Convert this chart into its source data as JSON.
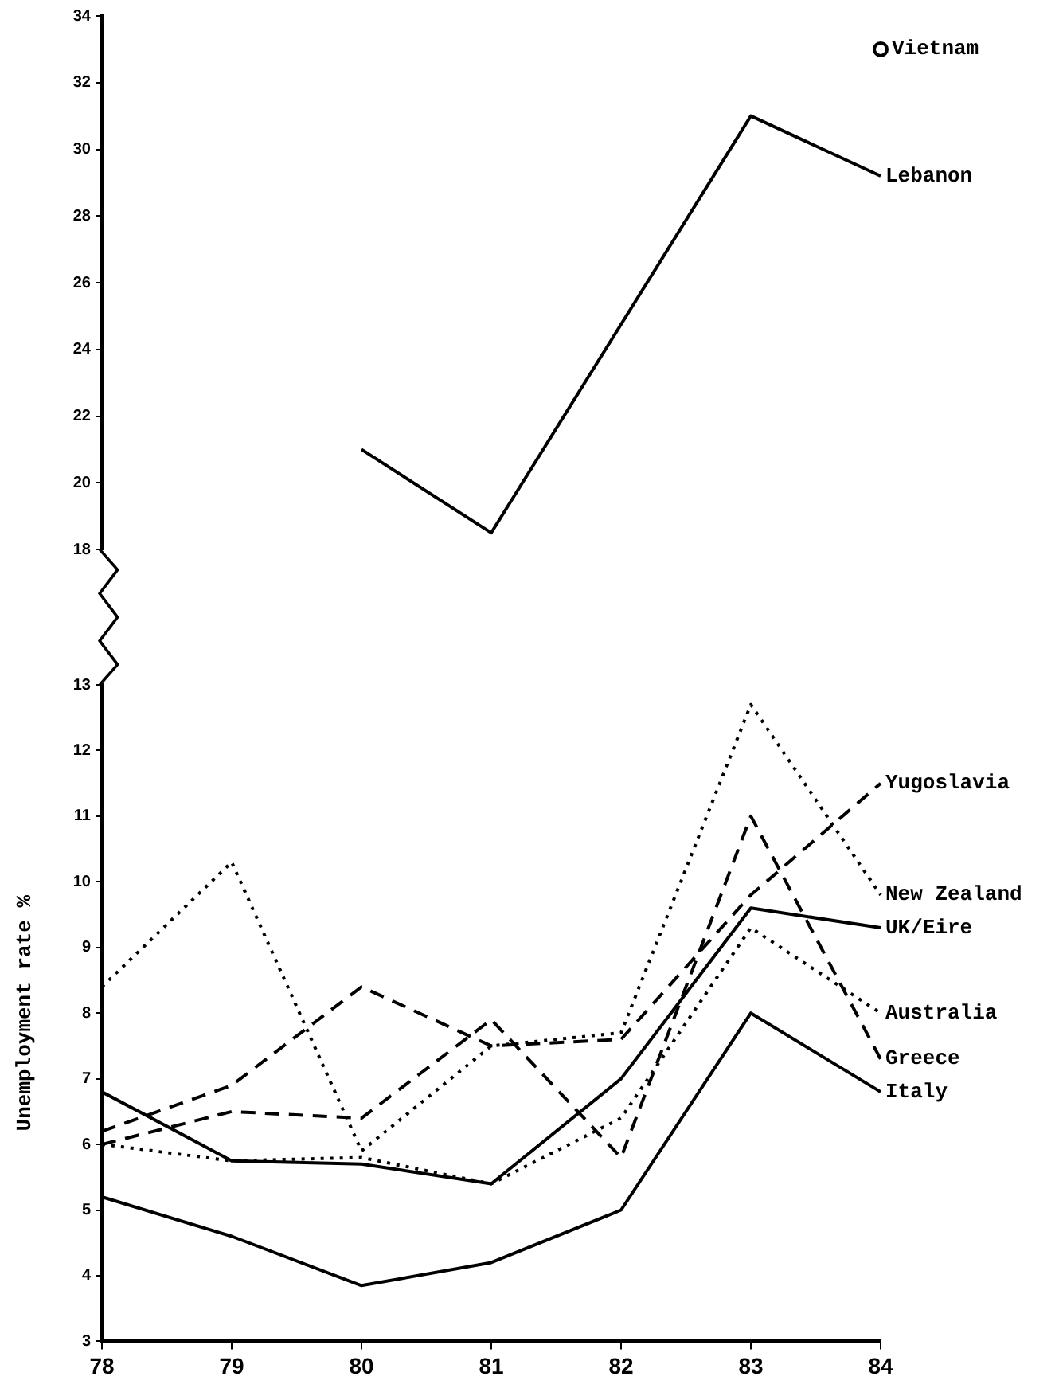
{
  "chart_data": [
    {
      "type": "line",
      "categories": [
        "78",
        "79",
        "80",
        "81",
        "82",
        "83",
        "84"
      ],
      "ylim": [
        18,
        34
      ],
      "yticks": [
        18,
        20,
        22,
        24,
        26,
        28,
        30,
        32,
        34
      ],
      "tick_labels": "y",
      "grid": false,
      "legend": false,
      "series": [
        {
          "name": "Vietnam",
          "type": "scatter",
          "marker": "circle",
          "color": "#000000",
          "values": [
            null,
            null,
            null,
            null,
            null,
            null,
            33
          ]
        },
        {
          "name": "Lebanon",
          "line_style": "solid",
          "color": "#000000",
          "values": [
            null,
            null,
            21,
            18.5,
            null,
            31,
            29.2
          ]
        }
      ]
    },
    {
      "type": "line",
      "ylabel": "Unemployment rate %",
      "categories": [
        "78",
        "79",
        "80",
        "81",
        "82",
        "83",
        "84"
      ],
      "ylim": [
        3,
        13
      ],
      "yticks": [
        3,
        4,
        5,
        6,
        7,
        8,
        9,
        10,
        11,
        12,
        13
      ],
      "grid": false,
      "legend": false,
      "series": [
        {
          "name": "Yugoslavia",
          "line_style": "dashed",
          "color": "#000000",
          "values": [
            6.2,
            6.9,
            8.4,
            7.5,
            7.6,
            9.8,
            11.5
          ]
        },
        {
          "name": "New Zealand",
          "line_style": "dotted",
          "color": "#000000",
          "values": [
            8.4,
            10.3,
            5.9,
            7.5,
            7.7,
            12.7,
            9.8
          ]
        },
        {
          "name": "UK/Eire",
          "line_style": "solid",
          "color": "#000000",
          "values": [
            6.8,
            5.75,
            5.7,
            5.4,
            7.0,
            9.6,
            9.3
          ]
        },
        {
          "name": "Australia",
          "line_style": "dotted",
          "color": "#000000",
          "values": [
            6.0,
            5.75,
            5.8,
            5.4,
            6.4,
            9.3,
            8.0
          ]
        },
        {
          "name": "Greece",
          "line_style": "dashed",
          "color": "#000000",
          "values": [
            6.0,
            6.5,
            6.4,
            7.9,
            5.8,
            11.0,
            7.3
          ]
        },
        {
          "name": "Italy",
          "line_style": "solid",
          "color": "#000000",
          "values": [
            5.2,
            4.6,
            3.85,
            4.2,
            5.0,
            8.0,
            6.8
          ]
        }
      ]
    }
  ]
}
